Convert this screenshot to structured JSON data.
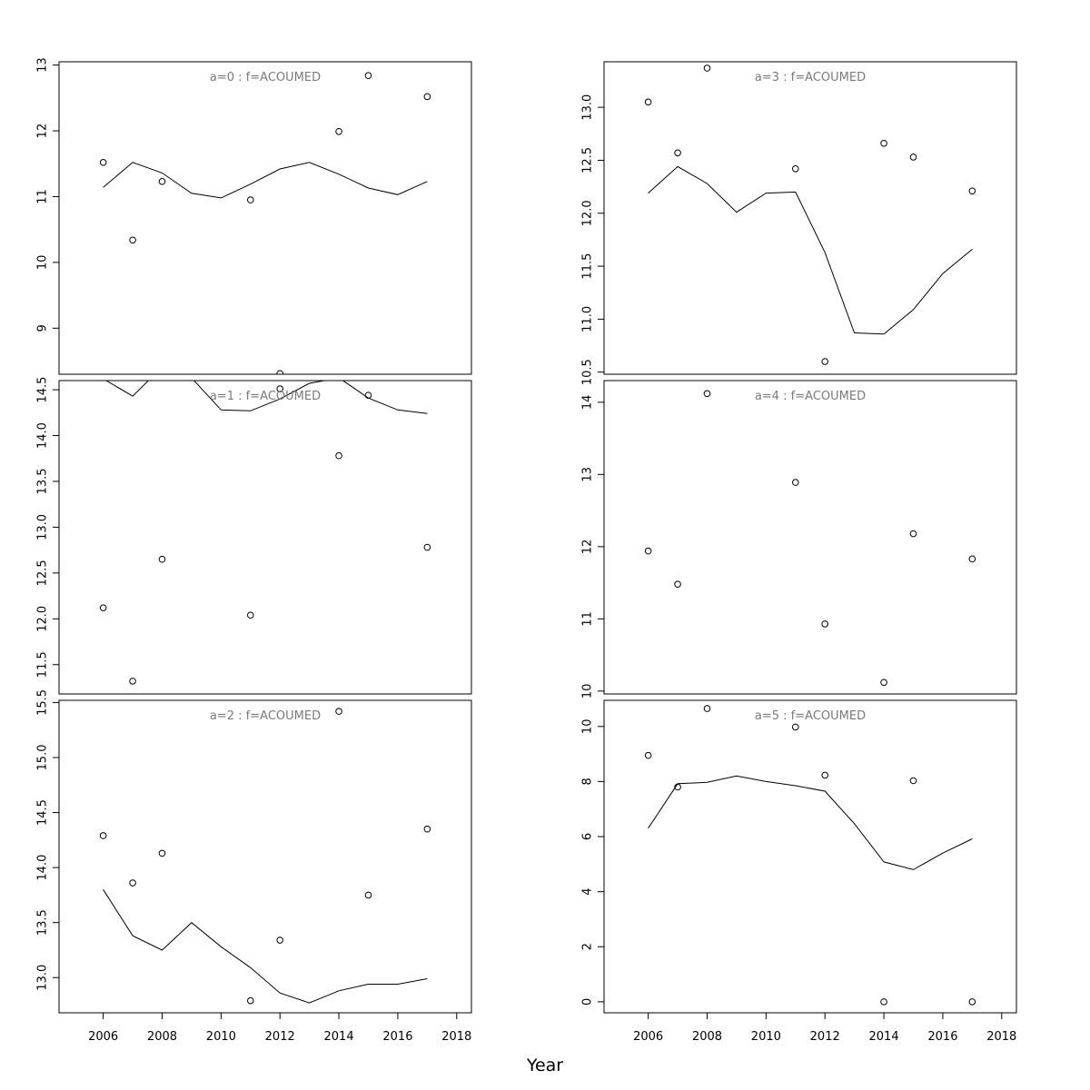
{
  "xlabel": "Year",
  "xticks": [
    "2006",
    "2008",
    "2010",
    "2012",
    "2014",
    "2016",
    "2018"
  ],
  "chart_data": [
    {
      "type": "scatter",
      "title": "a=0 : f=ACOUMED",
      "xlim": [
        2004.5,
        2018.5
      ],
      "ylim": [
        8.3,
        13.05
      ],
      "yticks": [
        "9",
        "10",
        "11",
        "12",
        "13"
      ],
      "observed": {
        "x": [
          2006,
          2007,
          2008,
          2011,
          2012,
          2014,
          2015,
          2017
        ],
        "y": [
          11.52,
          10.34,
          11.23,
          10.95,
          8.31,
          11.99,
          12.84,
          12.52
        ]
      },
      "fitted": {
        "x": [
          2006,
          2007,
          2008,
          2009,
          2010,
          2011,
          2012,
          2013,
          2014,
          2015,
          2016,
          2017
        ],
        "y": [
          11.14,
          11.52,
          11.36,
          11.05,
          10.98,
          11.19,
          11.42,
          11.52,
          11.34,
          11.13,
          11.03,
          11.23
        ]
      }
    },
    {
      "type": "scatter",
      "title": "a=1 : f=ACOUMED",
      "xlim": [
        2004.5,
        2018.5
      ],
      "ylim": [
        11.18,
        14.6
      ],
      "yticks": [
        "11.5",
        "12.0",
        "12.5",
        "13.0",
        "13.5",
        "14.0",
        "14.5"
      ],
      "observed": {
        "x": [
          2006,
          2007,
          2008,
          2011,
          2012,
          2014,
          2015,
          2017
        ],
        "y": [
          12.12,
          11.32,
          12.65,
          12.04,
          14.51,
          13.78,
          14.44,
          12.78
        ]
      },
      "fitted": {
        "x": [
          2006,
          2007,
          2008,
          2009,
          2010,
          2011,
          2012,
          2013,
          2014,
          2015,
          2016,
          2017
        ],
        "y": [
          14.62,
          14.43,
          14.75,
          14.63,
          14.28,
          14.27,
          14.4,
          14.57,
          14.63,
          14.41,
          14.28,
          14.24
        ]
      }
    },
    {
      "type": "scatter",
      "title": "a=2 : f=ACOUMED",
      "xlim": [
        2004.5,
        2018.5
      ],
      "ylim": [
        12.68,
        15.52
      ],
      "yticks": [
        "13.0",
        "13.5",
        "14.0",
        "14.5",
        "15.0",
        "15.5"
      ],
      "observed": {
        "x": [
          2006,
          2007,
          2008,
          2011,
          2012,
          2014,
          2015,
          2017
        ],
        "y": [
          14.29,
          13.86,
          14.13,
          12.79,
          13.34,
          15.42,
          13.75,
          14.35
        ]
      },
      "fitted": {
        "x": [
          2006,
          2007,
          2008,
          2009,
          2010,
          2011,
          2012,
          2013,
          2014,
          2015,
          2016,
          2017
        ],
        "y": [
          13.8,
          13.38,
          13.25,
          13.5,
          13.28,
          13.09,
          12.86,
          12.77,
          12.88,
          12.94,
          12.94,
          12.99
        ]
      }
    },
    {
      "type": "scatter",
      "title": "a=3 : f=ACOUMED",
      "xlim": [
        2004.5,
        2018.5
      ],
      "ylim": [
        10.48,
        13.43
      ],
      "yticks": [
        "10.5",
        "11.0",
        "11.5",
        "12.0",
        "12.5",
        "13.0"
      ],
      "observed": {
        "x": [
          2006,
          2007,
          2008,
          2011,
          2012,
          2014,
          2015,
          2017
        ],
        "y": [
          13.05,
          12.57,
          13.37,
          12.42,
          10.6,
          12.66,
          12.53,
          12.21
        ]
      },
      "fitted": {
        "x": [
          2006,
          2007,
          2008,
          2009,
          2010,
          2011,
          2012,
          2013,
          2014,
          2015,
          2016,
          2017
        ],
        "y": [
          12.19,
          12.44,
          12.28,
          12.01,
          12.19,
          12.2,
          11.63,
          10.87,
          10.86,
          11.09,
          11.43,
          11.66
        ]
      }
    },
    {
      "type": "scatter",
      "title": "a=4 : f=ACOUMED",
      "xlim": [
        2004.5,
        2018.5
      ],
      "ylim": [
        9.96,
        14.3
      ],
      "yticks": [
        "10",
        "11",
        "12",
        "13",
        "14"
      ],
      "observed": {
        "x": [
          2006,
          2007,
          2008,
          2011,
          2012,
          2014,
          2015,
          2017
        ],
        "y": [
          11.94,
          11.48,
          14.12,
          12.89,
          10.93,
          10.12,
          12.18,
          11.83
        ]
      },
      "fitted": null
    },
    {
      "type": "scatter",
      "title": "a=5 : f=ACOUMED",
      "xlim": [
        2004.5,
        2018.5
      ],
      "ylim": [
        -0.4,
        10.95
      ],
      "yticks": [
        "0",
        "2",
        "4",
        "6",
        "8",
        "10"
      ],
      "observed": {
        "x": [
          2006,
          2007,
          2008,
          2011,
          2012,
          2014,
          2015,
          2017
        ],
        "y": [
          8.95,
          7.8,
          10.65,
          9.98,
          8.23,
          0.0,
          8.03,
          0.0
        ]
      },
      "fitted": {
        "x": [
          2006,
          2007,
          2008,
          2009,
          2010,
          2011,
          2012,
          2013,
          2014,
          2015,
          2016,
          2017
        ],
        "y": [
          6.3,
          7.92,
          7.97,
          8.2,
          8.0,
          7.85,
          7.65,
          6.47,
          5.08,
          4.8,
          5.4,
          5.92
        ]
      }
    }
  ]
}
